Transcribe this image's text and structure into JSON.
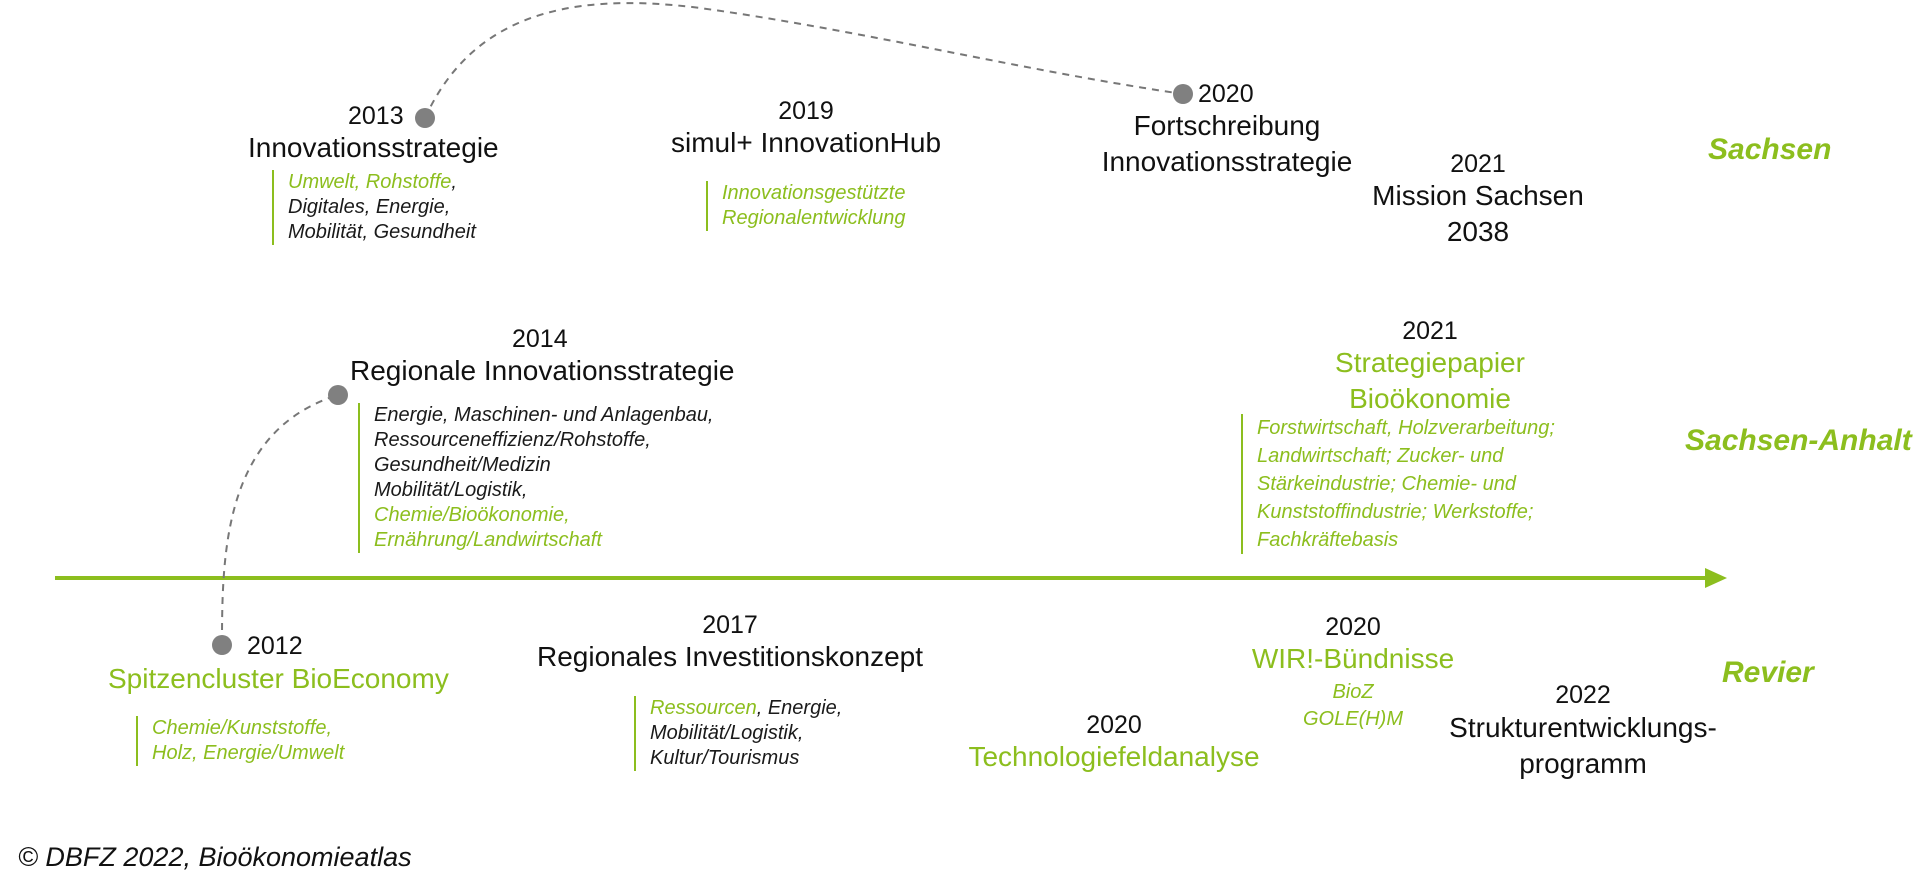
{
  "colors": {
    "accent_green": "#8cbe1e",
    "dot_gray": "#808080",
    "text": "#111111"
  },
  "regions": {
    "sachsen": "Sachsen",
    "sachsen_anhalt": "Sachsen-Anhalt",
    "revier": "Revier"
  },
  "sachsen": {
    "e2013": {
      "year": "2013",
      "title": "Innovationsstrategie",
      "notes": [
        [
          {
            "t": "Umwelt, Rohstoffe",
            "c": "g"
          },
          {
            "t": ",",
            "c": "k"
          }
        ],
        [
          {
            "t": "Digitales, Energie,",
            "c": "k"
          }
        ],
        [
          {
            "t": "Mobilität, Gesundheit",
            "c": "k"
          }
        ]
      ]
    },
    "e2019": {
      "year": "2019",
      "title": "simul+ InnovationHub",
      "notes": [
        [
          {
            "t": "Innovationsgestützte",
            "c": "g"
          }
        ],
        [
          {
            "t": "Regionalentwicklung",
            "c": "g"
          }
        ]
      ]
    },
    "e2020": {
      "year": "2020",
      "title_line1": "Fortschreibung",
      "title_line2": "Innovationsstrategie"
    },
    "e2021": {
      "year": "2021",
      "title_line1": "Mission Sachsen",
      "title_line2": "2038"
    }
  },
  "anhalt": {
    "e2014": {
      "year": "2014",
      "title": "Regionale Innovationsstrategie",
      "notes": [
        [
          {
            "t": "Energie, Maschinen- und Anlagenbau,",
            "c": "k"
          }
        ],
        [
          {
            "t": "Ressourceneffizienz/Rohstoffe,",
            "c": "k"
          }
        ],
        [
          {
            "t": "Gesundheit/Medizin",
            "c": "k"
          }
        ],
        [
          {
            "t": "Mobilität/Logistik,",
            "c": "k"
          }
        ],
        [
          {
            "t": "Chemie/Bioökonomie,",
            "c": "g"
          }
        ],
        [
          {
            "t": "Ernährung/Landwirtschaft",
            "c": "g"
          }
        ]
      ]
    },
    "e2021": {
      "year": "2021",
      "title_line1": "Strategiepapier",
      "title_line2": "Bioökonomie",
      "notes": [
        [
          {
            "t": "Forstwirtschaft, Holzverarbeitung;",
            "c": "g"
          }
        ],
        [
          {
            "t": "Landwirtschaft; Zucker- und",
            "c": "g"
          }
        ],
        [
          {
            "t": "Stärkeindustrie; Chemie- und",
            "c": "g"
          }
        ],
        [
          {
            "t": "Kunststoffindustrie; Werkstoffe;",
            "c": "g"
          }
        ],
        [
          {
            "t": "Fachkräftebasis",
            "c": "g"
          }
        ]
      ]
    }
  },
  "revier": {
    "e2012": {
      "year": "2012",
      "title": "Spitzencluster BioEconomy",
      "notes": [
        [
          {
            "t": "Chemie/Kunststoffe,",
            "c": "g"
          }
        ],
        [
          {
            "t": "Holz, Energie/Umwelt",
            "c": "g"
          }
        ]
      ]
    },
    "e2017": {
      "year": "2017",
      "title": "Regionales Investitionskonzept",
      "notes": [
        [
          {
            "t": "Ressourcen",
            "c": "g"
          },
          {
            "t": ", Energie,",
            "c": "k"
          }
        ],
        [
          {
            "t": "Mobilität/Logistik,",
            "c": "k"
          }
        ],
        [
          {
            "t": "Kultur/Tourismus",
            "c": "k"
          }
        ]
      ]
    },
    "e2020a": {
      "year": "2020",
      "title": "Technologiefeldanalyse"
    },
    "e2020b": {
      "year": "2020",
      "title": "WIR!-Bündnisse",
      "sub1": "BioZ",
      "sub2": "GOLE(H)M"
    },
    "e2022": {
      "year": "2022",
      "title_line1": "Strukturentwicklungs-",
      "title_line2": "programm"
    }
  },
  "footer": "© DBFZ 2022, Bioökonomieatlas"
}
